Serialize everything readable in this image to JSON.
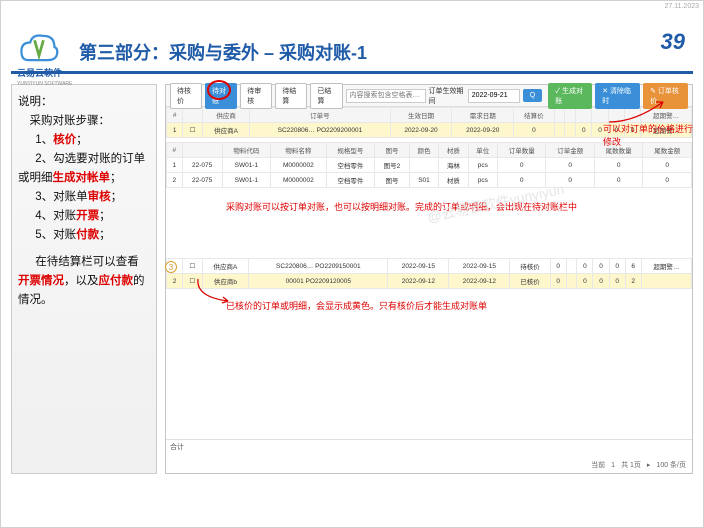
{
  "meta": {
    "date": "27.11.2023",
    "page": "39"
  },
  "header": {
    "logo_text": "云易云软件",
    "logo_sub": "YUNYIYUN SOFTWARE",
    "title": "第三部分：采购与委外 – 采购对账-1"
  },
  "sidebar": {
    "label": "说明：",
    "sub": "采购对账步骤：",
    "steps": [
      {
        "n": "1、",
        "t1": "核价",
        "t2": "；"
      },
      {
        "n": "2、",
        "t0": "勾选要对账的订单或明细",
        "t1": "生成对帐单",
        "t2": "；"
      },
      {
        "n": "3、",
        "t0": "对账单",
        "t1": "审核",
        "t2": "；"
      },
      {
        "n": "4、",
        "t0": "对账",
        "t1": "开票",
        "t2": "；"
      },
      {
        "n": "5、",
        "t0": "对账",
        "t1": "付款",
        "t2": "；"
      }
    ],
    "tail1a": "在待结算栏可以查看",
    "tail1b": "开票情况",
    "tail1c": "，以及",
    "tail1d": "应付款",
    "tail1e": "的情况。"
  },
  "toolbar": {
    "btns": [
      "待核价",
      "待对账",
      "待审核",
      "待结算",
      "已结算"
    ],
    "placeholder": "内容搜索包含空格表…",
    "date_label": "订单生效期间",
    "date": "2022-09-21",
    "search": "Q",
    "right_btns": [
      "✓ 生成对账",
      "✕ 清除临时",
      "✎ 订单核价"
    ]
  },
  "table1": {
    "headers": [
      "#",
      "",
      "供应商",
      "订单号",
      "生效日期",
      "需求日期",
      "结算价",
      "",
      "",
      "",
      "",
      "",
      "",
      "超期警…"
    ],
    "rows": [
      [
        "1",
        "☐",
        "供应商A",
        "SC220806…  PO2209200001",
        "2022-09-20",
        "2022-09-20",
        "0",
        "",
        "",
        "0",
        "0",
        "0",
        "0",
        "超期警…"
      ]
    ]
  },
  "table2": {
    "headers": [
      "#",
      "",
      "物料代码",
      "物料名称",
      "规格型号",
      "图号",
      "颜色",
      "材质",
      "单位",
      "订单数量",
      "订单金额",
      "尾数数量",
      "尾数金额"
    ],
    "rows": [
      [
        "1",
        "22-075",
        "SW01-1",
        "M0000002",
        "空档零件",
        "图号2",
        "",
        "海林",
        "pcs",
        "0",
        "0",
        "0",
        "0"
      ],
      [
        "2",
        "22-075",
        "SW01-1",
        "M0000002",
        "空档零件",
        "图号",
        "S01",
        "材质",
        "pcs",
        "0",
        "0",
        "0",
        "0"
      ]
    ]
  },
  "table3": {
    "rows": [
      [
        "1",
        "☐",
        "供应商A",
        "SC220806…  PO2209150001",
        "2022-09-15",
        "2022-09-15",
        "待核价",
        "0",
        "",
        "0",
        "0",
        "0",
        "6",
        "超期警…"
      ],
      [
        "2",
        "☐",
        "供应商b",
        "00001  PO2209120005",
        "2022-09-12",
        "2022-09-12",
        "已核价",
        "0",
        "",
        "0",
        "0",
        "0",
        "2",
        ""
      ]
    ]
  },
  "notes": {
    "n1": "可以对订单的价格进行修改",
    "n2": "采购对账可以按订单对账，也可以按明细对账。完成的订单或明细，会出现在待对账栏中",
    "n3": "已核价的订单或明细，会显示成黄色。只有核价后才能生成对账单"
  },
  "pager": {
    "total": "合计",
    "p": "当前",
    "page": "1",
    "of": "共 1页",
    "per": "100 条/页"
  },
  "watermark": "@云易云软件yunyiyun"
}
